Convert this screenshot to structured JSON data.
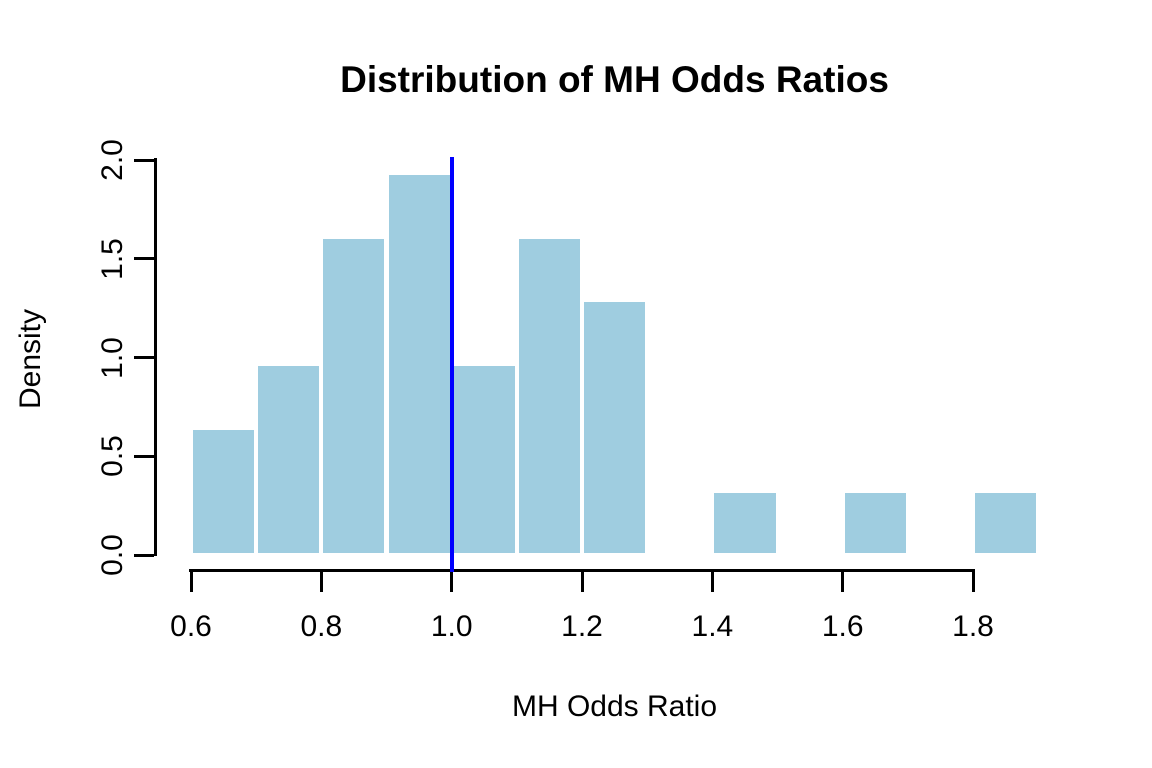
{
  "chart_data": {
    "type": "bar",
    "subtype": "histogram",
    "title": "Distribution of MH Odds Ratios",
    "xlabel": "MH Odds Ratio",
    "ylabel": "Density",
    "bin_edges": [
      0.6,
      0.7,
      0.8,
      0.9,
      1.0,
      1.1,
      1.2,
      1.3,
      1.4,
      1.5,
      1.6,
      1.7,
      1.8,
      1.9
    ],
    "densities": [
      0.6452,
      0.9677,
      1.6129,
      1.9355,
      0.9677,
      1.6129,
      1.2903,
      0,
      0.3226,
      0,
      0.3226,
      0,
      0.3226
    ],
    "x_ticks": [
      "0.6",
      "0.8",
      "1.0",
      "1.2",
      "1.4",
      "1.6",
      "1.8"
    ],
    "y_ticks": [
      "0.0",
      "0.5",
      "1.0",
      "1.5",
      "2.0"
    ],
    "xlim": [
      0.6,
      1.9
    ],
    "ylim": [
      0.0,
      2.0
    ],
    "grid": "off",
    "legend": "none",
    "reference_line": {
      "x": 1.0,
      "color": "#0000FF"
    },
    "colors": {
      "bar_fill": "#9FCDE0",
      "bar_border": "#FFFFFF",
      "axis": "#000000",
      "text": "#000000",
      "background": "#FFFFFF"
    }
  }
}
